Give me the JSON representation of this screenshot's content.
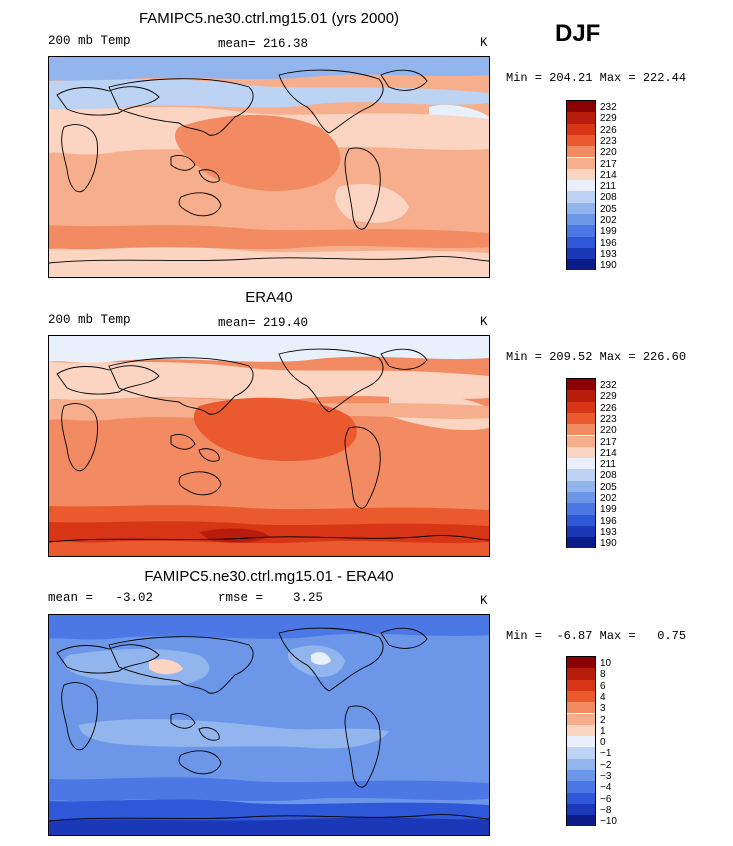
{
  "season": "DJF",
  "chart_data": [
    {
      "type": "heatmap",
      "title": "FAMIPC5.ne30.ctrl.mg15.01 (yrs 2000)",
      "left_label": "200 mb Temp",
      "stat_label": "mean= 216.38",
      "unit": "K",
      "min": 204.21,
      "max": 222.44,
      "minmax_text": "Min = 204.21 Max = 222.44",
      "colorbar_levels": [
        "232",
        "229",
        "226",
        "223",
        "220",
        "217",
        "214",
        "211",
        "208",
        "205",
        "202",
        "199",
        "196",
        "193",
        "190"
      ],
      "colors": [
        "#8b0000",
        "#b81c0d",
        "#d83516",
        "#ea5a2e",
        "#f28a62",
        "#f6ae8d",
        "#fbd5c2",
        "#e8f1fb",
        "#bcd3f4",
        "#92b5ee",
        "#6c97e9",
        "#4b78e4",
        "#2e58d8",
        "#1b38b8",
        "#0c1b8a"
      ]
    },
    {
      "type": "heatmap",
      "title": "ERA40",
      "left_label": "200 mb Temp",
      "stat_label": "mean= 219.40",
      "unit": "K",
      "min": 209.52,
      "max": 226.6,
      "minmax_text": "Min = 209.52 Max = 226.60",
      "colorbar_levels": [
        "232",
        "229",
        "226",
        "223",
        "220",
        "217",
        "214",
        "211",
        "208",
        "205",
        "202",
        "199",
        "196",
        "193",
        "190"
      ],
      "colors": [
        "#8b0000",
        "#b81c0d",
        "#d83516",
        "#ea5a2e",
        "#f28a62",
        "#f6ae8d",
        "#fbd5c2",
        "#e8f1fb",
        "#bcd3f4",
        "#92b5ee",
        "#6c97e9",
        "#4b78e4",
        "#2e58d8",
        "#1b38b8",
        "#0c1b8a"
      ]
    },
    {
      "type": "heatmap",
      "title": "FAMIPC5.ne30.ctrl.mg15.01 - ERA40",
      "left_label": "mean =   -3.02",
      "stat_label": "rmse =    3.25",
      "unit": "K",
      "min": -6.87,
      "max": 0.75,
      "minmax_text": "Min =  -6.87 Max =   0.75",
      "colorbar_levels": [
        "10",
        "8",
        "6",
        "4",
        "3",
        "2",
        "1",
        "0",
        "−1",
        "−2",
        "−3",
        "−4",
        "−6",
        "−8",
        "−10"
      ],
      "colors": [
        "#8b0000",
        "#b81c0d",
        "#d83516",
        "#ea5a2e",
        "#f28a62",
        "#f6ae8d",
        "#fbd5c2",
        "#e8f1fb",
        "#bcd3f4",
        "#92b5ee",
        "#6c97e9",
        "#4b78e4",
        "#2e58d8",
        "#1b38b8",
        "#0c1b8a"
      ]
    }
  ]
}
